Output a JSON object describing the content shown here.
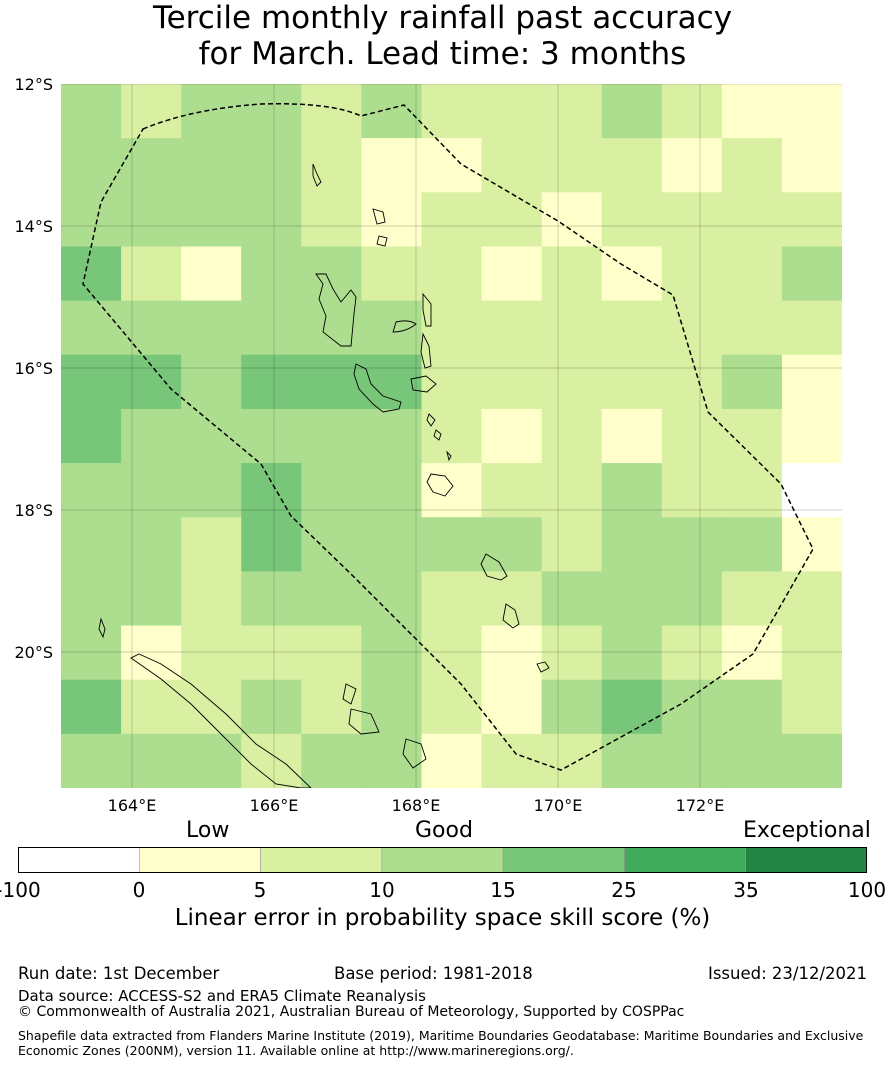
{
  "title": {
    "line1": "Tercile monthly rainfall past accuracy",
    "line2": "for March. Lead time: 3 months"
  },
  "map": {
    "lat_labels": [
      "12°S",
      "14°S",
      "16°S",
      "18°S",
      "20°S"
    ],
    "lon_labels": [
      "164°E",
      "166°E",
      "168°E",
      "170°E",
      "172°E"
    ],
    "lon_range": [
      163.0,
      174.0
    ],
    "lat_range": [
      -21.9,
      -12.0
    ],
    "cell_size_deg": 0.84,
    "grid_cols": 13,
    "grid_rows": 13,
    "skill_grid": [
      [
        3,
        2,
        3,
        3,
        2,
        3,
        2,
        2,
        2,
        3,
        2,
        1,
        1
      ],
      [
        3,
        3,
        3,
        3,
        2,
        1,
        1,
        2,
        2,
        2,
        1,
        2,
        1
      ],
      [
        3,
        3,
        3,
        3,
        2,
        1,
        2,
        2,
        1,
        2,
        2,
        2,
        2
      ],
      [
        4,
        2,
        1,
        3,
        3,
        2,
        2,
        1,
        2,
        1,
        2,
        2,
        3
      ],
      [
        3,
        3,
        3,
        3,
        3,
        3,
        2,
        2,
        2,
        2,
        2,
        2,
        2
      ],
      [
        4,
        4,
        3,
        4,
        4,
        4,
        2,
        2,
        2,
        2,
        2,
        3,
        1
      ],
      [
        4,
        3,
        3,
        3,
        3,
        3,
        2,
        1,
        2,
        1,
        2,
        2,
        1
      ],
      [
        3,
        3,
        3,
        4,
        3,
        3,
        1,
        2,
        2,
        3,
        2,
        2,
        0
      ],
      [
        3,
        3,
        2,
        4,
        3,
        3,
        3,
        3,
        2,
        3,
        3,
        3,
        1
      ],
      [
        3,
        3,
        2,
        3,
        3,
        3,
        2,
        2,
        3,
        3,
        3,
        2,
        2
      ],
      [
        3,
        1,
        2,
        2,
        2,
        3,
        2,
        1,
        2,
        3,
        2,
        1,
        2
      ],
      [
        4,
        2,
        2,
        3,
        2,
        3,
        2,
        1,
        3,
        4,
        3,
        3,
        2
      ],
      [
        3,
        3,
        3,
        2,
        3,
        3,
        1,
        2,
        2,
        3,
        3,
        3,
        3
      ]
    ]
  },
  "categories": {
    "low": "Low",
    "good": "Good",
    "exceptional": "Exceptional"
  },
  "colorbar": {
    "ticks": [
      "-100",
      "0",
      "5",
      "10",
      "15",
      "25",
      "35",
      "100"
    ],
    "colors": [
      "#ffffff",
      "#ffffcc",
      "#d9f0a3",
      "#addd8e",
      "#78c679",
      "#41ab5d",
      "#238443"
    ],
    "label": "Linear error in probability space skill score (%)"
  },
  "footer": {
    "run_date": "Run date: 1st December",
    "base_period": "Base period: 1981-2018",
    "issued": "Issued: 23/12/2021",
    "data_source": "Data source: ACCESS-S2 and ERA5 Climate Reanalysis",
    "copyright": "© Commonwealth of Australia 2021, Australian Bureau of Meteorology, Supported by COSPPac",
    "shapefile_1": "Shapefile data extracted from Flanders Marine Institute (2019), Maritime Boundaries Geodatabase: Maritime Boundaries and Exclusive",
    "shapefile_2": "Economic Zones (200NM), version 11. Available online at http://www.marineregions.org/."
  }
}
